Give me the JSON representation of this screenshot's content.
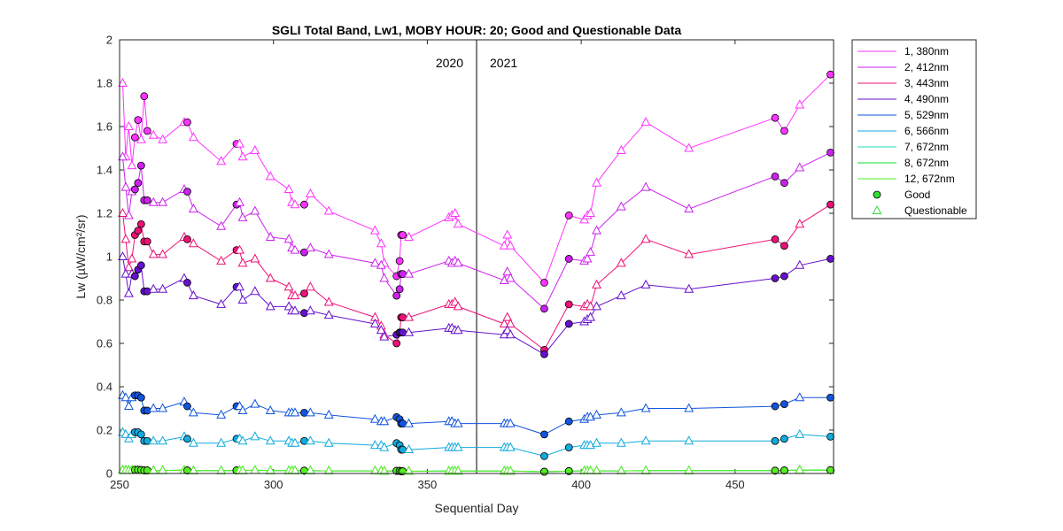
{
  "chart_data": {
    "type": "line",
    "title": "SGLI Total Band,  Lw1, MOBY HOUR: 20;  Good and Questionable Data",
    "xlabel": "Sequential Day",
    "ylabel": "Lw (µW/cm²/sr)",
    "xlim": [
      250,
      482
    ],
    "ylim": [
      0,
      2
    ],
    "xticks": [
      250,
      300,
      350,
      400,
      450
    ],
    "yticks": [
      0,
      0.2,
      0.4,
      0.6,
      0.8,
      1,
      1.2,
      1.4,
      1.6,
      1.8,
      2
    ],
    "ytick_labels": [
      "0",
      "0.2",
      "0.4",
      "0.6",
      "0.8",
      "1",
      "1.2",
      "1.4",
      "1.6",
      "1.8",
      "2"
    ],
    "grid": false,
    "legend_position": "outside-top-right",
    "year_divider": {
      "x": 366,
      "left_label": "2020",
      "right_label": "2021"
    },
    "x": [
      251,
      252,
      253,
      254,
      255,
      256,
      257,
      258,
      259,
      261,
      264,
      271,
      272,
      274,
      283,
      288,
      289,
      290,
      294,
      299,
      305,
      306,
      307,
      310,
      312,
      318,
      333,
      335,
      336,
      340,
      341,
      341.5,
      342,
      344,
      357,
      358,
      359,
      360,
      375,
      376,
      377,
      388,
      396,
      401,
      402,
      403,
      405,
      413,
      421,
      435,
      463,
      466,
      471,
      481
    ],
    "series": [
      {
        "name": "1, 380nm",
        "color": "#ff33ff",
        "values": [
          1.8,
          1.46,
          1.6,
          1.42,
          1.55,
          1.63,
          1.54,
          1.74,
          1.58,
          1.56,
          1.54,
          1.62,
          1.62,
          1.55,
          1.44,
          1.52,
          1.52,
          1.46,
          1.49,
          1.37,
          1.31,
          1.25,
          1.24,
          1.24,
          1.29,
          1.21,
          1.12,
          1.06,
          0.97,
          0.91,
          0.98,
          1.1,
          1.1,
          1.09,
          1.18,
          1.19,
          1.2,
          1.15,
          1.05,
          1.1,
          1.05,
          0.88,
          1.19,
          1.17,
          1.19,
          1.2,
          1.34,
          1.49,
          1.62,
          1.5,
          1.64,
          1.58,
          1.7,
          1.84
        ],
        "quality": [
          "Q",
          "Q",
          "Q",
          "Q",
          "G",
          "G",
          "Q",
          "G",
          "G",
          "Q",
          "Q",
          "Q",
          "G",
          "Q",
          "Q",
          "G",
          "Q",
          "Q",
          "Q",
          "Q",
          "Q",
          "Q",
          "Q",
          "G",
          "Q",
          "Q",
          "Q",
          "Q",
          "Q",
          "G",
          "G",
          "G",
          "G",
          "Q",
          "Q",
          "Q",
          "Q",
          "Q",
          "Q",
          "Q",
          "Q",
          "G",
          "G",
          "Q",
          "Q",
          "Q",
          "Q",
          "Q",
          "Q",
          "Q",
          "G",
          "G",
          "Q",
          "G"
        ]
      },
      {
        "name": "2, 412nm",
        "color": "#cc22ee",
        "values": [
          1.46,
          1.32,
          1.19,
          1.3,
          1.31,
          1.34,
          1.42,
          1.26,
          1.26,
          1.25,
          1.25,
          1.31,
          1.3,
          1.22,
          1.14,
          1.24,
          1.25,
          1.18,
          1.21,
          1.09,
          1.08,
          1.04,
          1.03,
          1.02,
          1.04,
          1.01,
          0.97,
          0.96,
          0.9,
          0.82,
          0.85,
          0.92,
          0.92,
          0.92,
          0.98,
          0.97,
          0.98,
          0.97,
          0.89,
          0.93,
          0.9,
          0.76,
          0.99,
          0.98,
          0.99,
          1.02,
          1.12,
          1.23,
          1.32,
          1.22,
          1.37,
          1.34,
          1.41,
          1.48
        ],
        "quality": [
          "Q",
          "Q",
          "Q",
          "Q",
          "G",
          "G",
          "G",
          "G",
          "G",
          "Q",
          "Q",
          "Q",
          "G",
          "Q",
          "Q",
          "G",
          "Q",
          "Q",
          "Q",
          "Q",
          "Q",
          "Q",
          "Q",
          "G",
          "Q",
          "Q",
          "Q",
          "Q",
          "Q",
          "G",
          "G",
          "G",
          "G",
          "Q",
          "Q",
          "Q",
          "Q",
          "Q",
          "Q",
          "Q",
          "Q",
          "G",
          "G",
          "Q",
          "Q",
          "Q",
          "Q",
          "Q",
          "Q",
          "Q",
          "G",
          "G",
          "Q",
          "G"
        ]
      },
      {
        "name": "3, 443nm",
        "color": "#ee1177",
        "values": [
          1.2,
          1.08,
          0.95,
          0.99,
          1.1,
          1.12,
          1.15,
          1.07,
          1.07,
          1.01,
          1.01,
          1.09,
          1.08,
          1.06,
          0.98,
          1.03,
          1.03,
          0.97,
          0.99,
          0.9,
          0.86,
          0.82,
          0.82,
          0.83,
          0.86,
          0.79,
          0.72,
          0.68,
          0.64,
          0.6,
          0.65,
          0.72,
          0.72,
          0.72,
          0.78,
          0.78,
          0.79,
          0.77,
          0.69,
          0.72,
          0.69,
          0.57,
          0.78,
          0.77,
          0.78,
          0.77,
          0.87,
          0.97,
          1.08,
          1.01,
          1.08,
          1.05,
          1.15,
          1.24
        ],
        "quality": [
          "Q",
          "Q",
          "Q",
          "Q",
          "G",
          "G",
          "G",
          "G",
          "G",
          "Q",
          "Q",
          "Q",
          "G",
          "Q",
          "Q",
          "G",
          "Q",
          "Q",
          "Q",
          "Q",
          "Q",
          "Q",
          "Q",
          "G",
          "Q",
          "Q",
          "Q",
          "Q",
          "Q",
          "G",
          "G",
          "G",
          "G",
          "Q",
          "Q",
          "Q",
          "Q",
          "Q",
          "Q",
          "Q",
          "Q",
          "G",
          "G",
          "Q",
          "Q",
          "Q",
          "Q",
          "Q",
          "Q",
          "Q",
          "G",
          "G",
          "Q",
          "G"
        ]
      },
      {
        "name": "4, 490nm",
        "color": "#6611cc",
        "values": [
          1.0,
          0.92,
          0.83,
          0.92,
          0.91,
          0.94,
          0.96,
          0.84,
          0.84,
          0.85,
          0.85,
          0.9,
          0.88,
          0.82,
          0.78,
          0.86,
          0.86,
          0.8,
          0.84,
          0.77,
          0.77,
          0.75,
          0.75,
          0.74,
          0.75,
          0.73,
          0.69,
          0.66,
          0.63,
          0.64,
          0.65,
          0.65,
          0.65,
          0.65,
          0.67,
          0.67,
          0.66,
          0.66,
          0.64,
          0.66,
          0.64,
          0.55,
          0.69,
          0.7,
          0.71,
          0.72,
          0.77,
          0.82,
          0.87,
          0.85,
          0.9,
          0.91,
          0.96,
          0.99
        ],
        "quality": [
          "Q",
          "Q",
          "Q",
          "Q",
          "G",
          "G",
          "G",
          "G",
          "G",
          "Q",
          "Q",
          "Q",
          "G",
          "Q",
          "Q",
          "G",
          "Q",
          "Q",
          "Q",
          "Q",
          "Q",
          "Q",
          "Q",
          "G",
          "Q",
          "Q",
          "Q",
          "Q",
          "Q",
          "G",
          "G",
          "G",
          "G",
          "Q",
          "Q",
          "Q",
          "Q",
          "Q",
          "Q",
          "Q",
          "Q",
          "G",
          "G",
          "Q",
          "Q",
          "Q",
          "Q",
          "Q",
          "Q",
          "Q",
          "G",
          "G",
          "Q",
          "G"
        ]
      },
      {
        "name": "5, 529nm",
        "color": "#1155dd",
        "values": [
          0.36,
          0.35,
          0.31,
          0.35,
          0.36,
          0.36,
          0.35,
          0.29,
          0.29,
          0.3,
          0.3,
          0.33,
          0.31,
          0.28,
          0.27,
          0.31,
          0.31,
          0.29,
          0.32,
          0.29,
          0.28,
          0.28,
          0.28,
          0.28,
          0.28,
          0.27,
          0.25,
          0.24,
          0.24,
          0.26,
          0.25,
          0.23,
          0.23,
          0.23,
          0.24,
          0.24,
          0.23,
          0.23,
          0.23,
          0.23,
          0.23,
          0.18,
          0.24,
          0.25,
          0.26,
          0.26,
          0.27,
          0.28,
          0.3,
          0.3,
          0.31,
          0.32,
          0.35,
          0.35
        ],
        "quality": [
          "Q",
          "Q",
          "Q",
          "Q",
          "G",
          "G",
          "G",
          "G",
          "G",
          "Q",
          "Q",
          "Q",
          "G",
          "Q",
          "Q",
          "G",
          "Q",
          "Q",
          "Q",
          "Q",
          "Q",
          "Q",
          "Q",
          "G",
          "Q",
          "Q",
          "Q",
          "Q",
          "Q",
          "G",
          "G",
          "G",
          "G",
          "Q",
          "Q",
          "Q",
          "Q",
          "Q",
          "Q",
          "Q",
          "Q",
          "G",
          "G",
          "Q",
          "Q",
          "Q",
          "Q",
          "Q",
          "Q",
          "Q",
          "G",
          "G",
          "Q",
          "G"
        ]
      },
      {
        "name": "6, 566nm",
        "color": "#11aadd",
        "values": [
          0.19,
          0.18,
          0.16,
          0.18,
          0.19,
          0.19,
          0.18,
          0.15,
          0.15,
          0.15,
          0.15,
          0.17,
          0.16,
          0.14,
          0.14,
          0.16,
          0.16,
          0.15,
          0.17,
          0.15,
          0.15,
          0.14,
          0.14,
          0.15,
          0.15,
          0.14,
          0.13,
          0.13,
          0.12,
          0.14,
          0.13,
          0.11,
          0.11,
          0.11,
          0.12,
          0.12,
          0.12,
          0.12,
          0.12,
          0.12,
          0.12,
          0.08,
          0.12,
          0.13,
          0.13,
          0.13,
          0.14,
          0.14,
          0.15,
          0.15,
          0.15,
          0.16,
          0.18,
          0.17
        ],
        "quality": [
          "Q",
          "Q",
          "Q",
          "Q",
          "G",
          "G",
          "G",
          "G",
          "G",
          "Q",
          "Q",
          "Q",
          "G",
          "Q",
          "Q",
          "G",
          "Q",
          "Q",
          "Q",
          "Q",
          "Q",
          "Q",
          "Q",
          "G",
          "Q",
          "Q",
          "Q",
          "Q",
          "Q",
          "G",
          "G",
          "G",
          "G",
          "Q",
          "Q",
          "Q",
          "Q",
          "Q",
          "Q",
          "Q",
          "Q",
          "G",
          "G",
          "Q",
          "Q",
          "Q",
          "Q",
          "Q",
          "Q",
          "Q",
          "G",
          "G",
          "Q",
          "G"
        ]
      },
      {
        "name": "7, 672nm",
        "color": "#22ddbb",
        "values": [
          0.016,
          0.016,
          0.015,
          0.016,
          0.017,
          0.017,
          0.016,
          0.014,
          0.014,
          0.014,
          0.014,
          0.015,
          0.014,
          0.013,
          0.013,
          0.014,
          0.014,
          0.013,
          0.015,
          0.013,
          0.013,
          0.013,
          0.013,
          0.013,
          0.013,
          0.012,
          0.012,
          0.012,
          0.011,
          0.012,
          0.012,
          0.01,
          0.01,
          0.01,
          0.011,
          0.011,
          0.011,
          0.011,
          0.011,
          0.011,
          0.011,
          0.008,
          0.011,
          0.012,
          0.012,
          0.012,
          0.012,
          0.012,
          0.013,
          0.013,
          0.013,
          0.014,
          0.016,
          0.015
        ],
        "quality": [
          "Q",
          "Q",
          "Q",
          "Q",
          "G",
          "G",
          "G",
          "G",
          "G",
          "Q",
          "Q",
          "Q",
          "G",
          "Q",
          "Q",
          "G",
          "Q",
          "Q",
          "Q",
          "Q",
          "Q",
          "Q",
          "Q",
          "G",
          "Q",
          "Q",
          "Q",
          "Q",
          "Q",
          "G",
          "G",
          "G",
          "G",
          "Q",
          "Q",
          "Q",
          "Q",
          "Q",
          "Q",
          "Q",
          "Q",
          "G",
          "G",
          "Q",
          "Q",
          "Q",
          "Q",
          "Q",
          "Q",
          "Q",
          "G",
          "G",
          "Q",
          "G"
        ]
      },
      {
        "name": "8, 672nm",
        "color": "#11dd33",
        "values": [
          0.016,
          0.016,
          0.015,
          0.016,
          0.017,
          0.017,
          0.016,
          0.014,
          0.014,
          0.014,
          0.014,
          0.015,
          0.014,
          0.013,
          0.013,
          0.014,
          0.014,
          0.013,
          0.015,
          0.013,
          0.013,
          0.013,
          0.013,
          0.013,
          0.013,
          0.012,
          0.012,
          0.012,
          0.011,
          0.012,
          0.012,
          0.01,
          0.01,
          0.01,
          0.011,
          0.011,
          0.011,
          0.011,
          0.011,
          0.011,
          0.011,
          0.008,
          0.011,
          0.012,
          0.012,
          0.012,
          0.012,
          0.012,
          0.013,
          0.013,
          0.013,
          0.014,
          0.016,
          0.015
        ],
        "quality": [
          "Q",
          "Q",
          "Q",
          "Q",
          "G",
          "G",
          "G",
          "G",
          "G",
          "Q",
          "Q",
          "Q",
          "G",
          "Q",
          "Q",
          "G",
          "Q",
          "Q",
          "Q",
          "Q",
          "Q",
          "Q",
          "Q",
          "G",
          "Q",
          "Q",
          "Q",
          "Q",
          "Q",
          "G",
          "G",
          "G",
          "G",
          "Q",
          "Q",
          "Q",
          "Q",
          "Q",
          "Q",
          "Q",
          "Q",
          "G",
          "G",
          "Q",
          "Q",
          "Q",
          "Q",
          "Q",
          "Q",
          "Q",
          "G",
          "G",
          "Q",
          "G"
        ]
      },
      {
        "name": "12, 672nm",
        "color": "#55ee22",
        "values": [
          0.016,
          0.016,
          0.015,
          0.016,
          0.017,
          0.017,
          0.016,
          0.014,
          0.014,
          0.014,
          0.014,
          0.015,
          0.014,
          0.013,
          0.013,
          0.014,
          0.014,
          0.013,
          0.015,
          0.013,
          0.013,
          0.013,
          0.013,
          0.013,
          0.013,
          0.012,
          0.012,
          0.012,
          0.011,
          0.012,
          0.012,
          0.01,
          0.01,
          0.01,
          0.011,
          0.011,
          0.011,
          0.011,
          0.011,
          0.011,
          0.011,
          0.008,
          0.011,
          0.012,
          0.012,
          0.012,
          0.012,
          0.012,
          0.013,
          0.013,
          0.013,
          0.014,
          0.016,
          0.015
        ],
        "quality": [
          "Q",
          "Q",
          "Q",
          "Q",
          "G",
          "G",
          "G",
          "G",
          "G",
          "Q",
          "Q",
          "Q",
          "G",
          "Q",
          "Q",
          "G",
          "Q",
          "Q",
          "Q",
          "Q",
          "Q",
          "Q",
          "Q",
          "G",
          "Q",
          "Q",
          "Q",
          "Q",
          "Q",
          "G",
          "G",
          "G",
          "G",
          "Q",
          "Q",
          "Q",
          "Q",
          "Q",
          "Q",
          "Q",
          "Q",
          "G",
          "G",
          "Q",
          "Q",
          "Q",
          "Q",
          "Q",
          "Q",
          "Q",
          "G",
          "G",
          "Q",
          "G"
        ]
      }
    ],
    "marker_legend": [
      {
        "label": "Good",
        "marker": "circle",
        "color": "#33dd33"
      },
      {
        "label": "Questionable",
        "marker": "triangle",
        "color": "#33dd33"
      }
    ]
  }
}
